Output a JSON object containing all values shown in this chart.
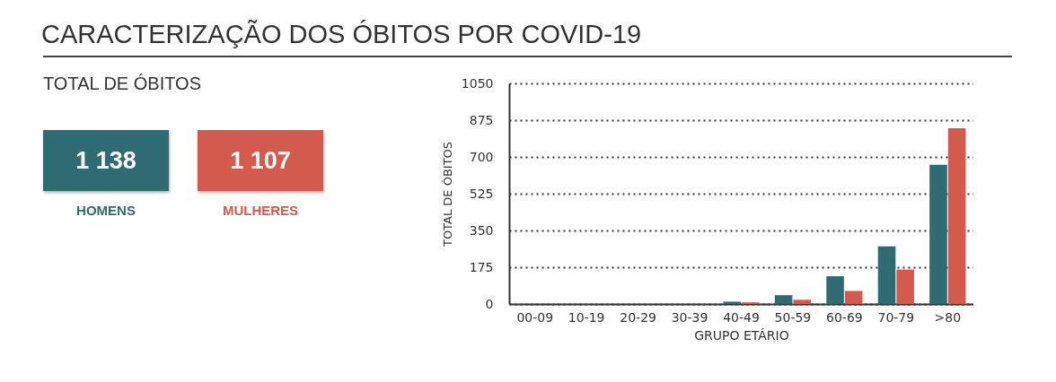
{
  "chart_data": {
    "type": "bar",
    "title": "CARACTERIZAÇÃO DOS ÓBITOS POR COVID-19",
    "subtitle": "TOTAL DE ÓBITOS",
    "annotations": [
      "1 138",
      "1 107"
    ],
    "xlabel": "GRUPO ETÁRIO",
    "ylabel": "TOTAL DE ÓBITOS",
    "categories": [
      "00-09",
      "10-19",
      "20-29",
      "30-39",
      "40-49",
      "50-59",
      "60-69",
      "70-79",
      ">80"
    ],
    "series": [
      {
        "name": "HOMENS",
        "color": "#2f6b72",
        "values": [
          0,
          0,
          0,
          0,
          11,
          42,
          132,
          274,
          663
        ]
      },
      {
        "name": "MULHERES",
        "color": "#d35a4c",
        "values": [
          0,
          0,
          0,
          0,
          8,
          20,
          62,
          164,
          837
        ]
      }
    ],
    "ylim": [
      0,
      1050
    ],
    "yticks": [
      0,
      175,
      350,
      525,
      700,
      875,
      1050
    ],
    "grid": "y",
    "legend": "left"
  }
}
